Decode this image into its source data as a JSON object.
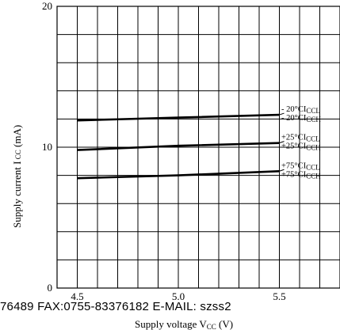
{
  "chart_data": {
    "type": "line",
    "title": "",
    "xlabel_parts": [
      "Supply voltage V",
      "CC",
      " (V)"
    ],
    "ylabel_parts": [
      "Supply current I",
      " CC",
      " (mA)"
    ],
    "xlim": [
      4.4,
      5.8
    ],
    "ylim": [
      0,
      20
    ],
    "grid": true,
    "x_ticks": [
      "4.5",
      "5.0",
      "5.5"
    ],
    "y_ticks": [
      "0",
      "10",
      "20"
    ],
    "x": [
      4.5,
      5.0,
      5.5
    ],
    "series": [
      {
        "name": "- 20°CI CCL / CCH",
        "values": [
          11.9,
          12.1,
          12.3
        ]
      },
      {
        "name": "+25°CI CCL / CCH",
        "values": [
          9.8,
          10.1,
          10.3
        ]
      },
      {
        "name": "+75°CI CCL / CCH",
        "values": [
          7.8,
          8.0,
          8.3
        ]
      }
    ],
    "annotations": [
      {
        "prefix": "- 20°CI",
        "sub": "CCL"
      },
      {
        "prefix": "- 20°CI",
        "sub": "CCH"
      },
      {
        "prefix": "+25°CI",
        "sub": "CCL"
      },
      {
        "prefix": "+25°CI",
        "sub": "CCH"
      },
      {
        "prefix": "+75°CI",
        "sub": "CCL"
      },
      {
        "prefix": "+75°CI",
        "sub": "CCH"
      }
    ]
  },
  "overlay_text": "76489 FAX:0755-83376182 E-MAIL: szss2"
}
